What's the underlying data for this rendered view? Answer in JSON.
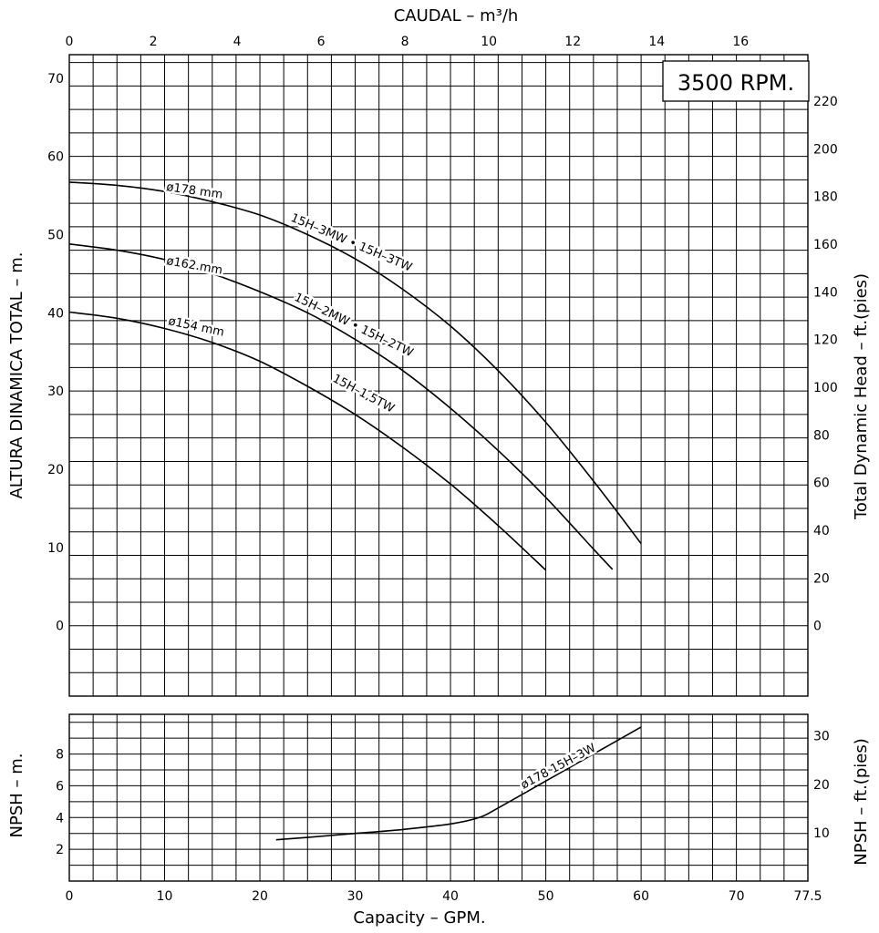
{
  "rpm_label": "3500 RPM.",
  "top_axis_title": "CAUDAL  –  m³/h",
  "bottom_axis_title": "Capacity  –  GPM.",
  "left_title_head": "ALTURA DINAMICA TOTAL  –  m.",
  "right_title_head": "Total Dynamic Head  –  ft.(pies)",
  "left_title_npsh": "NPSH  –  m.",
  "right_title_npsh": "NPSH  –  ft.(pies)",
  "chart_data": [
    {
      "type": "line",
      "title": "",
      "x_unit": "GPM",
      "xlim": [
        0,
        77.5
      ],
      "x_ticks": [
        "0",
        "10",
        "20",
        "30",
        "40",
        "50",
        "60",
        "70",
        "77.5"
      ],
      "x2_unit": "m³/h",
      "x2_ticks": [
        "0",
        "2",
        "4",
        "6",
        "8",
        "10",
        "12",
        "14",
        "16"
      ],
      "ylabel": "ALTURA DINAMICA TOTAL – m.",
      "ylim": [
        -9,
        73
      ],
      "y_ticks": [
        "0",
        "10",
        "20",
        "30",
        "40",
        "50",
        "60",
        "70"
      ],
      "y2label": "Total Dynamic Head – ft.(pies)",
      "y2_ticks": [
        "0",
        "20",
        "40",
        "60",
        "80",
        "100",
        "120",
        "140",
        "160",
        "180",
        "200",
        "220"
      ],
      "grid": true,
      "series": [
        {
          "name": "ø178 mm",
          "model_label": "15H–3MW • 15H–3TW",
          "x": [
            0,
            5,
            10,
            15,
            20,
            25,
            30,
            35,
            40,
            45,
            50,
            55,
            60
          ],
          "y": [
            56.7,
            56.3,
            55.5,
            54.2,
            52.5,
            50.0,
            46.9,
            43.0,
            38.3,
            32.6,
            26.0,
            18.5,
            10.5
          ]
        },
        {
          "name": "ø162 mm",
          "model_label": "15H–2MW • 15H–2TW",
          "x": [
            0,
            5,
            10,
            15,
            20,
            25,
            30,
            35,
            40,
            45,
            50,
            55,
            57
          ],
          "y": [
            48.8,
            48.0,
            46.8,
            45.0,
            42.7,
            40.0,
            36.6,
            32.6,
            27.8,
            22.4,
            16.4,
            9.8,
            7.2
          ]
        },
        {
          "name": "ø154 mm",
          "model_label": "15H–1,5TW",
          "x": [
            0,
            5,
            10,
            15,
            20,
            25,
            30,
            35,
            40,
            45,
            50
          ],
          "y": [
            40.1,
            39.3,
            38.0,
            36.2,
            33.8,
            30.6,
            27.0,
            22.8,
            18.1,
            12.8,
            7.1
          ]
        }
      ]
    },
    {
      "type": "line",
      "title": "",
      "x_unit": "GPM",
      "xlim": [
        0,
        77.5
      ],
      "ylabel": "NPSH – m.",
      "ylim": [
        0,
        10.5
      ],
      "y_ticks": [
        "2",
        "4",
        "6",
        "8"
      ],
      "y2label": "NPSH – ft.(pies)",
      "y2_ticks": [
        "10",
        "20",
        "30"
      ],
      "grid": true,
      "series": [
        {
          "name": "ø178 15H–3W",
          "x": [
            21.7,
            25,
            30,
            35,
            40,
            43,
            45,
            50,
            55,
            60
          ],
          "y": [
            2.6,
            2.75,
            3.0,
            3.25,
            3.6,
            4.0,
            4.6,
            6.3,
            8.0,
            9.7
          ]
        }
      ]
    }
  ]
}
